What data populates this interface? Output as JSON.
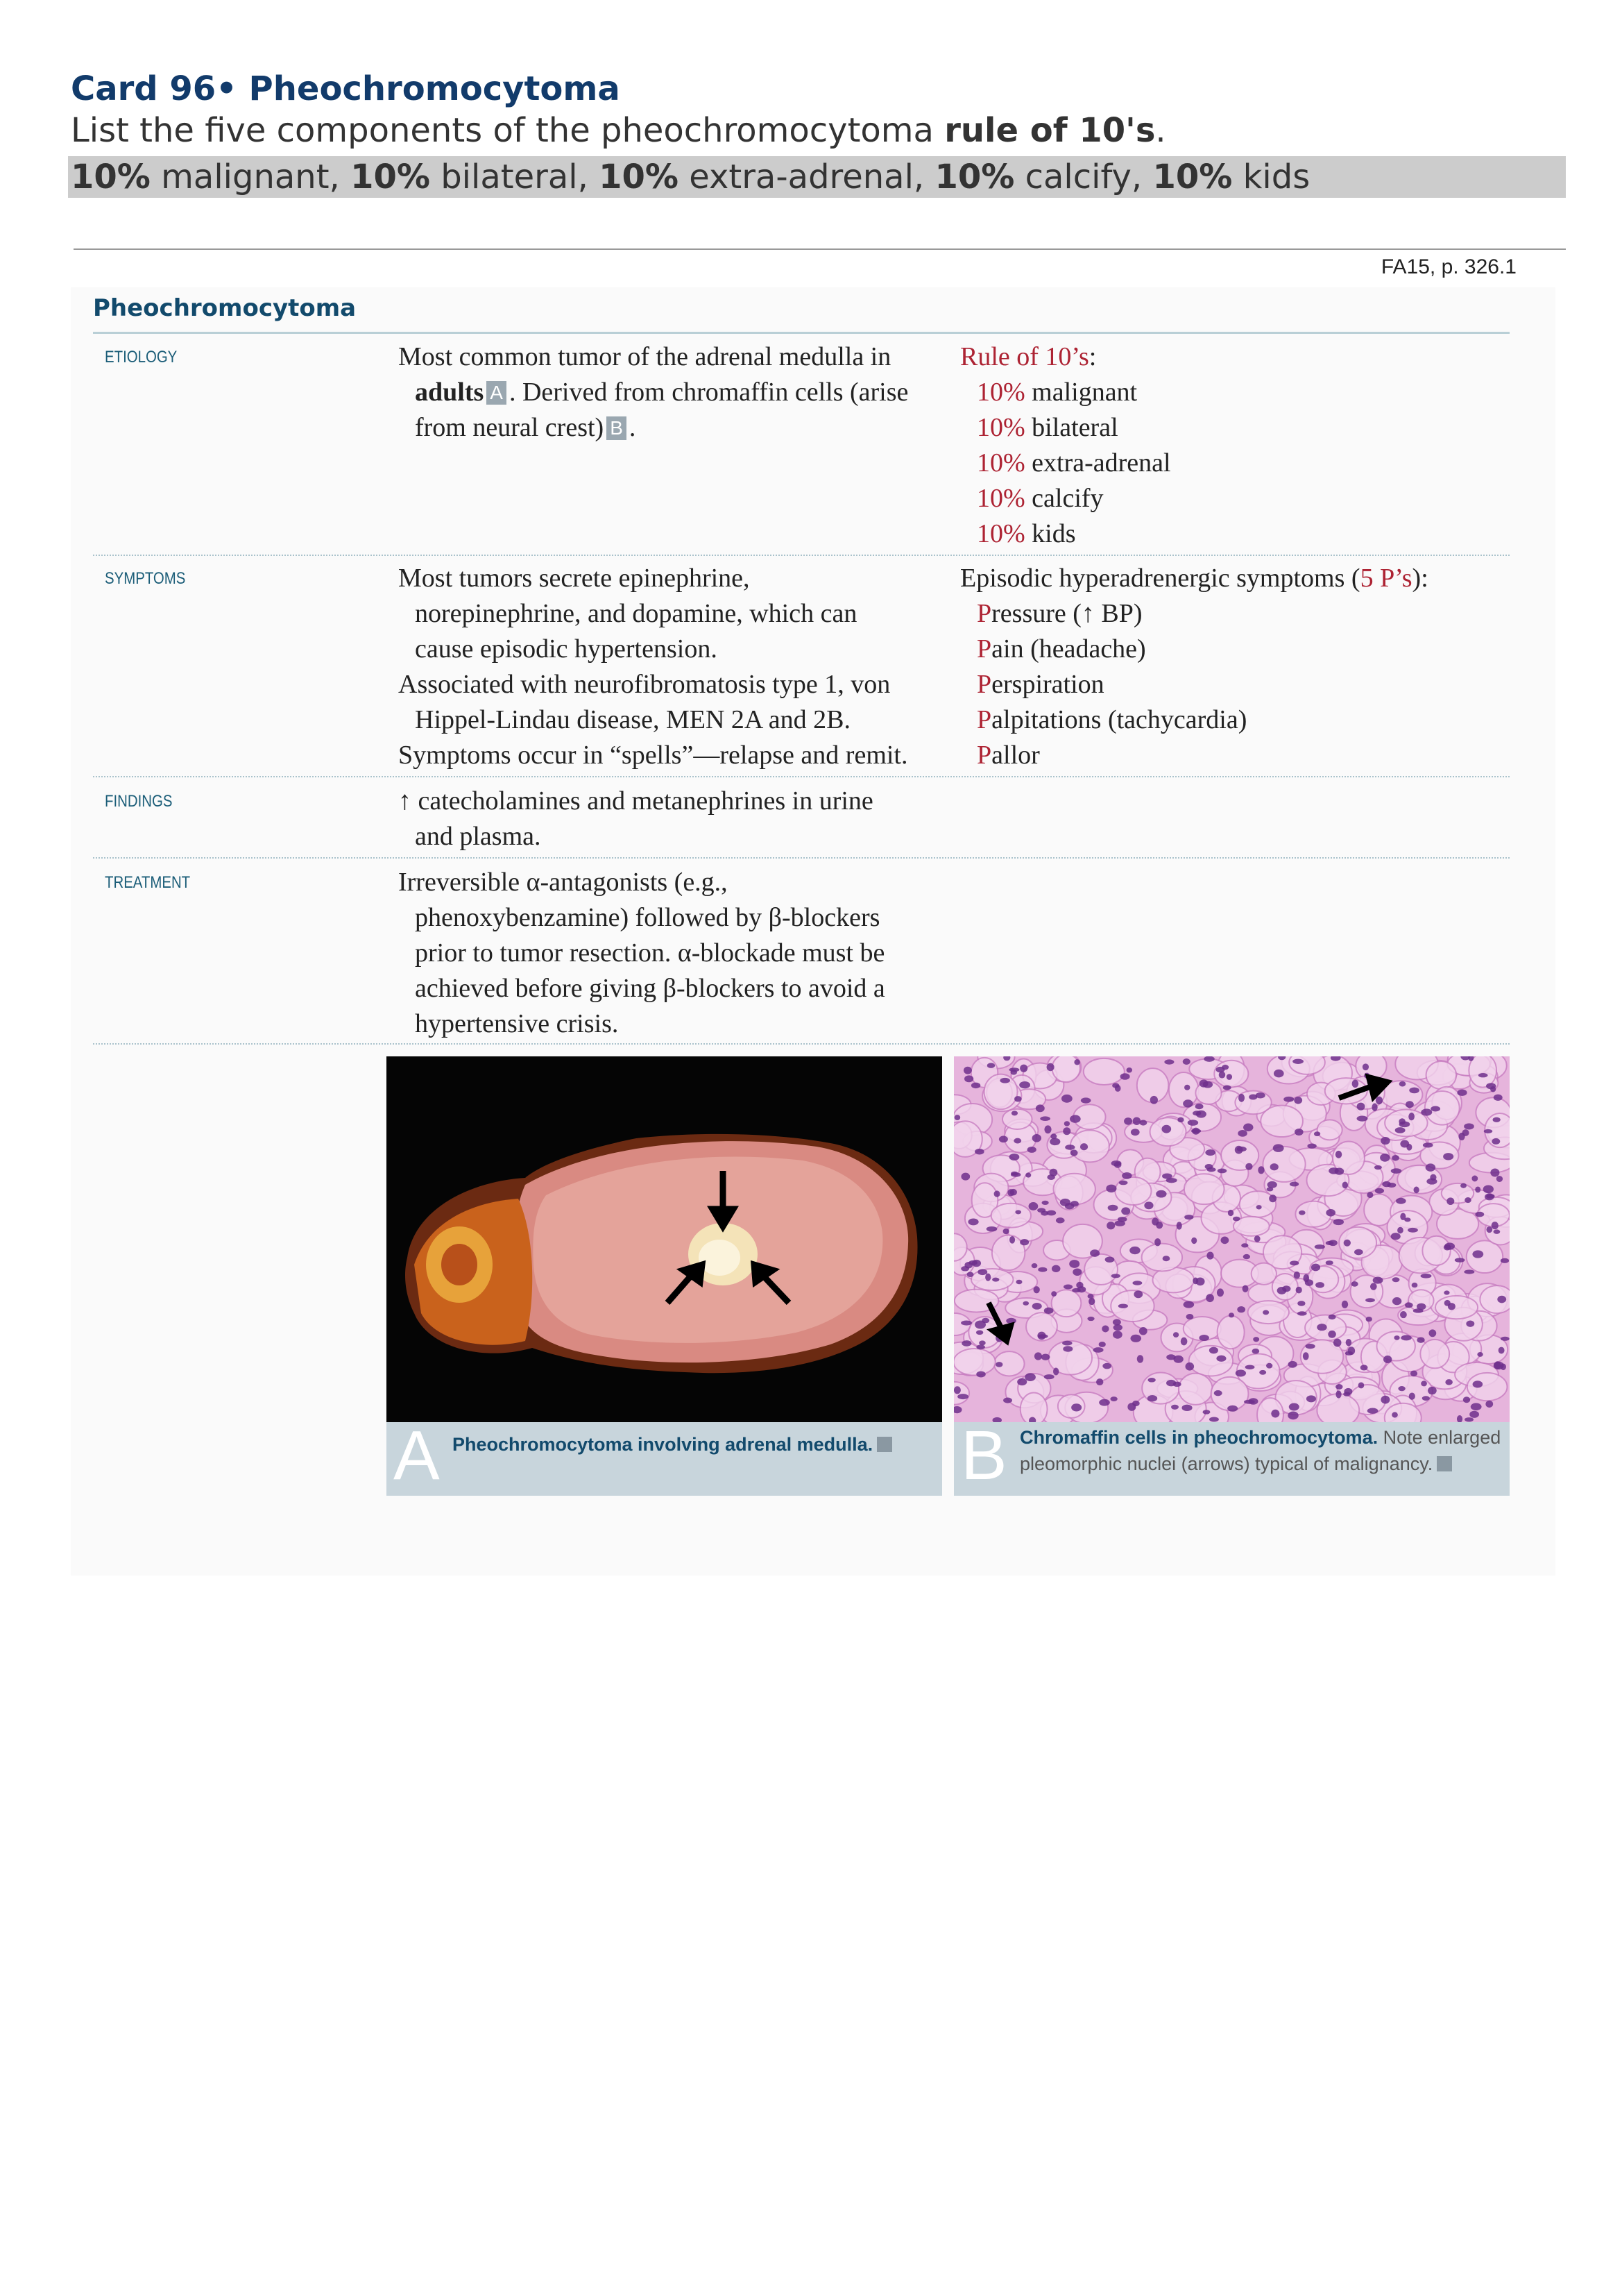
{
  "header": {
    "title": "Card 96• Pheochromocytoma",
    "question": [
      "List the five components of the pheochromocytoma ",
      "rule of 10's",
      "."
    ],
    "answer": [
      "10%",
      " malignant, ",
      "10%",
      " bilateral, ",
      "10%",
      " extra-adrenal, ",
      "10%",
      " calcify, ",
      "10%",
      " kids"
    ]
  },
  "source": "FA15, p. 326.1",
  "section": {
    "title": "Pheochromocytoma",
    "rows": [
      {
        "label": "ETIOLOGY",
        "left": [
          [
            "Most common tumor of the adrenal medulla in"
          ],
          [
            "adults",
            "A",
            ". Derived from chromaffin cells (arise"
          ],
          [
            "from neural crest)",
            "B",
            "."
          ]
        ],
        "right": [
          [
            "Rule of 10’s",
            ":"
          ],
          [
            "10%",
            " malignant"
          ],
          [
            "10%",
            " bilateral"
          ],
          [
            "10%",
            " extra-adrenal"
          ],
          [
            "10%",
            " calcify"
          ],
          [
            "10%",
            " kids"
          ]
        ]
      },
      {
        "label": "SYMPTOMS",
        "left": [
          [
            "Most tumors secrete epinephrine,"
          ],
          [
            "norepinephrine, and dopamine, which can"
          ],
          [
            "cause episodic hypertension."
          ],
          [
            "Associated with neurofibromatosis type 1, von"
          ],
          [
            "Hippel-Lindau disease, MEN 2A and 2B."
          ],
          [
            "Symptoms occur in “spells”—relapse and remit."
          ]
        ],
        "right": [
          [
            "Episodic hyperadrenergic symptoms (",
            "5 P’s",
            "):"
          ],
          [
            "P",
            "ressure (↑ BP)"
          ],
          [
            "P",
            "ain (headache)"
          ],
          [
            "P",
            "erspiration"
          ],
          [
            "P",
            "alpitations (tachycardia)"
          ],
          [
            "P",
            "allor"
          ]
        ]
      },
      {
        "label": "FINDINGS",
        "left": [
          [
            "↑ catecholamines and metanephrines in urine"
          ],
          [
            "and plasma."
          ]
        ],
        "right": []
      },
      {
        "label": "TREATMENT",
        "left": [
          [
            "Irreversible α-antagonists (e.g.,"
          ],
          [
            "phenoxybenzamine) followed by β-blockers"
          ],
          [
            "prior to tumor resection. α-blockade must be"
          ],
          [
            "achieved before giving β-blockers to avoid a"
          ],
          [
            "hypertensive crisis."
          ]
        ],
        "right": []
      }
    ]
  },
  "figures": [
    {
      "letter": "A",
      "caption": "Pheochromocytoma involving adrenal medulla."
    },
    {
      "letter": "B",
      "caption": "Chromaffin cells in pheochromocytoma.",
      "note": [
        "Note enlarged",
        "pleomorphic nuclei (arrows) typical of malignancy."
      ]
    }
  ]
}
